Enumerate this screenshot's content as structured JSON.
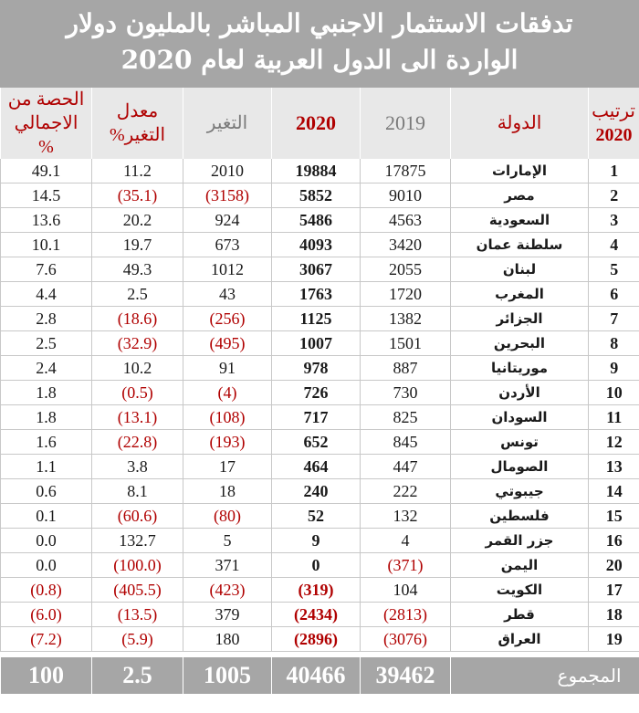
{
  "title_line1": "تدفقات الاستثمار الاجنبي المباشر بالمليون دولار",
  "title_line2": "الواردة الى الدول العربية لعام 2020",
  "headers": {
    "rank_line1": "ترتيب",
    "rank_line2": "2020",
    "country": "الدولة",
    "y2019": "2019",
    "y2020": "2020",
    "change": "التغير",
    "rate_line1": "معدل",
    "rate_line2": "التغير%",
    "share_line1": "الحصة من",
    "share_line2": "الاجمالي %"
  },
  "rows": [
    {
      "rank": "1",
      "country": "الإمارات",
      "y2019": "17875",
      "y2020": "19884",
      "change": "2010",
      "rate": "11.2",
      "share": "49.1"
    },
    {
      "rank": "2",
      "country": "مصر",
      "y2019": "9010",
      "y2020": "5852",
      "change": "(3158)",
      "rate": "(35.1)",
      "share": "14.5"
    },
    {
      "rank": "3",
      "country": "السعودية",
      "y2019": "4563",
      "y2020": "5486",
      "change": "924",
      "rate": "20.2",
      "share": "13.6"
    },
    {
      "rank": "4",
      "country": "سلطنة عمان",
      "y2019": "3420",
      "y2020": "4093",
      "change": "673",
      "rate": "19.7",
      "share": "10.1"
    },
    {
      "rank": "5",
      "country": "لبنان",
      "y2019": "2055",
      "y2020": "3067",
      "change": "1012",
      "rate": "49.3",
      "share": "7.6"
    },
    {
      "rank": "6",
      "country": "المغرب",
      "y2019": "1720",
      "y2020": "1763",
      "change": "43",
      "rate": "2.5",
      "share": "4.4"
    },
    {
      "rank": "7",
      "country": "الجزائر",
      "y2019": "1382",
      "y2020": "1125",
      "change": "(256)",
      "rate": "(18.6)",
      "share": "2.8"
    },
    {
      "rank": "8",
      "country": "البحرين",
      "y2019": "1501",
      "y2020": "1007",
      "change": "(495)",
      "rate": "(32.9)",
      "share": "2.5"
    },
    {
      "rank": "9",
      "country": "موريتانيا",
      "y2019": "887",
      "y2020": "978",
      "change": "91",
      "rate": "10.2",
      "share": "2.4"
    },
    {
      "rank": "10",
      "country": "الأردن",
      "y2019": "730",
      "y2020": "726",
      "change": "(4)",
      "rate": "(0.5)",
      "share": "1.8"
    },
    {
      "rank": "11",
      "country": "السودان",
      "y2019": "825",
      "y2020": "717",
      "change": "(108)",
      "rate": "(13.1)",
      "share": "1.8"
    },
    {
      "rank": "12",
      "country": "تونس",
      "y2019": "845",
      "y2020": "652",
      "change": "(193)",
      "rate": "(22.8)",
      "share": "1.6"
    },
    {
      "rank": "13",
      "country": "الصومال",
      "y2019": "447",
      "y2020": "464",
      "change": "17",
      "rate": "3.8",
      "share": "1.1"
    },
    {
      "rank": "14",
      "country": "جيبوتي",
      "y2019": "222",
      "y2020": "240",
      "change": "18",
      "rate": "8.1",
      "share": "0.6"
    },
    {
      "rank": "15",
      "country": "فلسطين",
      "y2019": "132",
      "y2020": "52",
      "change": "(80)",
      "rate": "(60.6)",
      "share": "0.1"
    },
    {
      "rank": "16",
      "country": "جزر القمر",
      "y2019": "4",
      "y2020": "9",
      "change": "5",
      "rate": "132.7",
      "share": "0.0"
    },
    {
      "rank": "20",
      "country": "اليمن",
      "y2019": "(371)",
      "y2020": "0",
      "change": "371",
      "rate": "(100.0)",
      "share": "0.0"
    },
    {
      "rank": "17",
      "country": "الكويت",
      "y2019": "104",
      "y2020": "(319)",
      "change": "(423)",
      "rate": "(405.5)",
      "share": "(0.8)"
    },
    {
      "rank": "18",
      "country": "قطر",
      "y2019": "(2813)",
      "y2020": "(2434)",
      "change": "379",
      "rate": "(13.5)",
      "share": "(6.0)"
    },
    {
      "rank": "19",
      "country": "العراق",
      "y2019": "(3076)",
      "y2020": "(2896)",
      "change": "180",
      "rate": "(5.9)",
      "share": "(7.2)"
    }
  ],
  "total": {
    "label": "المجموع",
    "y2019": "39462",
    "y2020": "40466",
    "change": "1005",
    "rate": "2.5",
    "share": "100"
  },
  "colors": {
    "header_band": "#a6a6a6",
    "header_row": "#e8e8e8",
    "accent_red": "#b00000"
  }
}
